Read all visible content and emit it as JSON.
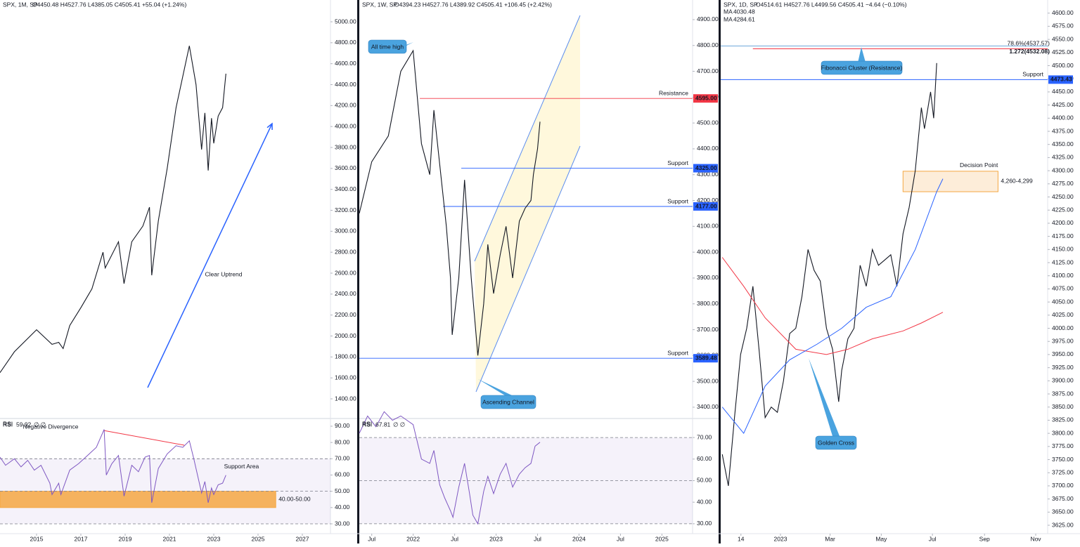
{
  "chart_data": [
    {
      "type": "line",
      "header": "SPX, 1M, SP",
      "info": "O4450.48  H4527.76  L4385.05  C4505.41  +55.04 (+1.24%)",
      "xlim": [
        2013.35,
        2028.27
      ],
      "ylim": [
        1219,
        5208
      ],
      "xticks": [
        2015,
        2017,
        2019,
        2021,
        2023,
        2025,
        2027
      ],
      "yticks": [
        {
          "value": 1400,
          "label": "1400.00"
        },
        {
          "value": 1600,
          "label": "1600.00"
        },
        {
          "value": 1800,
          "label": "1800.00"
        },
        {
          "value": 2000,
          "label": "2000.00"
        },
        {
          "value": 2200,
          "label": "2200.00"
        },
        {
          "value": 2400,
          "label": "2400.00"
        },
        {
          "value": 2600,
          "label": "2600.00"
        },
        {
          "value": 2800,
          "label": "2800.00"
        },
        {
          "value": 3000,
          "label": "3000.00"
        },
        {
          "value": 3200,
          "label": "3200.00"
        },
        {
          "value": 3400,
          "label": "3400.00"
        },
        {
          "value": 3600,
          "label": "3600.00"
        },
        {
          "value": 3800,
          "label": "3800.00"
        },
        {
          "value": 4000,
          "label": "4000.00"
        },
        {
          "value": 4200,
          "label": "4200.00"
        },
        {
          "value": 4400,
          "label": "4400.00"
        },
        {
          "value": 4600,
          "label": "4600.00"
        },
        {
          "value": 4800,
          "label": "4800.00"
        },
        {
          "value": 5000,
          "label": "5000.00"
        }
      ],
      "series": [
        {
          "color": "#131722",
          "x": [
            2013.35,
            2014.0,
            2015.0,
            2015.7,
            2016.0,
            2016.2,
            2016.5,
            2017.0,
            2017.5,
            2018.0,
            2018.1,
            2018.7,
            2018.95,
            2019.3,
            2019.8,
            2020.1,
            2020.2,
            2020.5,
            2020.9,
            2021.3,
            2021.9,
            2022.2,
            2022.45,
            2022.6,
            2022.75,
            2022.9,
            2023.0,
            2023.2,
            2023.4,
            2023.55
          ],
          "values": [
            1650,
            1850,
            2060,
            1920,
            1940,
            1880,
            2100,
            2270,
            2450,
            2800,
            2650,
            2900,
            2500,
            2900,
            3050,
            3230,
            2580,
            3100,
            3600,
            4180,
            4770,
            4400,
            3780,
            4130,
            3580,
            4080,
            3840,
            4100,
            4180,
            4505
          ]
        }
      ],
      "notes": [
        {
          "text": "Clear Uptrend"
        }
      ]
    },
    {
      "type": "line",
      "header": "RSI",
      "info": "∅  ∅",
      "xlim": [
        2013.35,
        2028.27
      ],
      "ylim": [
        23.96,
        94.3
      ],
      "yticks": [
        {
          "value": 30,
          "label": "30.00"
        },
        {
          "value": 40,
          "label": "40.00"
        },
        {
          "value": 50,
          "label": "50.00"
        },
        {
          "value": 60,
          "label": "60.00"
        },
        {
          "value": 70,
          "label": "70.00"
        },
        {
          "value": 80,
          "label": "80.00"
        },
        {
          "value": 90,
          "label": "90.00"
        }
      ],
      "band": [
        30,
        70
      ],
      "dashed": [
        70,
        50,
        30
      ],
      "series": [
        {
          "name": "RSI",
          "color": "#7e57c2",
          "x": [
            2013.35,
            2013.6,
            2014.0,
            2014.3,
            2014.6,
            2014.9,
            2015.2,
            2015.6,
            2015.7,
            2016.0,
            2016.1,
            2016.5,
            2016.9,
            2017.3,
            2017.7,
            2018.05,
            2018.15,
            2018.4,
            2018.7,
            2018.95,
            2019.3,
            2019.6,
            2019.9,
            2020.1,
            2020.2,
            2020.5,
            2020.9,
            2021.3,
            2021.6,
            2021.9,
            2022.1,
            2022.45,
            2022.6,
            2022.75,
            2022.9,
            2023.0,
            2023.2,
            2023.4,
            2023.55
          ],
          "values": [
            71,
            66,
            70,
            65,
            69,
            63,
            66,
            55,
            48,
            55,
            48,
            63,
            67,
            72,
            77,
            88,
            60,
            67,
            72,
            47,
            66,
            62,
            71,
            72,
            43,
            64,
            73,
            78,
            77,
            81,
            70,
            49,
            56,
            43,
            52,
            48,
            54,
            55,
            59.92
          ]
        }
      ],
      "zones": [
        {
          "name": "Support Area",
          "label": "40.00-50.00",
          "range": [
            40,
            50
          ],
          "x": [
            2013.35,
            2025.8
          ],
          "color": "#f5a742"
        }
      ],
      "notes": [
        {
          "text": "Negative Divergence"
        }
      ]
    },
    {
      "type": "line",
      "header": "SPX, 1W, SP",
      "info": "O4394.23  H4527.76  L4389.92  C4505.41  +106.45 (+2.42%)",
      "xlim": [
        2021.35,
        2025.37
      ],
      "ylim": [
        3359,
        4976
      ],
      "xticks": [
        {
          "value": 2021.5,
          "label": "Jul"
        },
        2022,
        {
          "value": 2022.5,
          "label": "Jul"
        },
        2023,
        {
          "value": 2023.5,
          "label": "Jul"
        },
        2024,
        {
          "value": 2024.5,
          "label": "Jul"
        },
        2025
      ],
      "yticks": [
        {
          "value": 3400,
          "label": "3400.00"
        },
        {
          "value": 3500,
          "label": "3500.00"
        },
        {
          "value": 3600,
          "label": "3600.00"
        },
        {
          "value": 3700,
          "label": "3700.00"
        },
        {
          "value": 3800,
          "label": "3800.00"
        },
        {
          "value": 3900,
          "label": "3900.00"
        },
        {
          "value": 4000,
          "label": "4000.00"
        },
        {
          "value": 4100,
          "label": "4100.00"
        },
        {
          "value": 4200,
          "label": "4200.00"
        },
        {
          "value": 4300,
          "label": "4300.00"
        },
        {
          "value": 4400,
          "label": "4400.00"
        },
        {
          "value": 4500,
          "label": "4500.00"
        },
        {
          "value": 4600,
          "label": "4600.00"
        },
        {
          "value": 4700,
          "label": "4700.00"
        },
        {
          "value": 4800,
          "label": "4800.00"
        },
        {
          "value": 4900,
          "label": "4900.00"
        }
      ],
      "series": [
        {
          "color": "#131722",
          "x": [
            2021.35,
            2021.5,
            2021.7,
            2021.85,
            2022.0,
            2022.1,
            2022.2,
            2022.25,
            2022.4,
            2022.45,
            2022.47,
            2022.55,
            2022.62,
            2022.7,
            2022.78,
            2022.85,
            2022.9,
            2022.97,
            2023.05,
            2023.12,
            2023.2,
            2023.28,
            2023.35,
            2023.42,
            2023.45,
            2023.5,
            2023.53
          ],
          "values": [
            4150,
            4350,
            4450,
            4700,
            4780,
            4420,
            4300,
            4550,
            4100,
            3900,
            3680,
            3900,
            4280,
            3900,
            3600,
            3800,
            4030,
            3840,
            3990,
            4100,
            3900,
            4120,
            4170,
            4200,
            4300,
            4400,
            4505
          ]
        }
      ],
      "levels": [
        {
          "name": "Resistance",
          "value": 4595,
          "label": "4595.00",
          "x": 2022.08,
          "color": "#f23645"
        },
        {
          "name": "Support",
          "value": 4325,
          "label": "4325.00",
          "x": 2022.58,
          "color": "#2962ff"
        },
        {
          "name": "Support",
          "value": 4177,
          "label": "4177.00",
          "x": 2022.36,
          "color": "#2962ff"
        },
        {
          "name": "Support",
          "value": 3589.48,
          "label": "3589.48",
          "x": 2021.35,
          "color": "#2962ff"
        }
      ],
      "callouts": [
        {
          "text": "All time high"
        },
        {
          "text": "Ascending Channel"
        }
      ]
    },
    {
      "type": "line",
      "header": "RSI",
      "info": "∅  ∅",
      "xlim": [
        2021.35,
        2025.37
      ],
      "ylim": [
        25.4,
        78.5
      ],
      "yticks": [
        {
          "value": 30,
          "label": "30.00"
        },
        {
          "value": 40,
          "label": "40.00"
        },
        {
          "value": 50,
          "label": "50.00"
        },
        {
          "value": 60,
          "label": "60.00"
        },
        {
          "value": 70,
          "label": "70.00"
        }
      ],
      "band": [
        30,
        70
      ],
      "dashed": [
        70,
        50,
        30
      ],
      "series": [
        {
          "name": "RSI",
          "color": "#7e57c2",
          "x": [
            2021.35,
            2021.45,
            2021.55,
            2021.65,
            2021.75,
            2021.85,
            2022.0,
            2022.1,
            2022.2,
            2022.25,
            2022.32,
            2022.38,
            2022.45,
            2022.48,
            2022.55,
            2022.62,
            2022.68,
            2022.72,
            2022.78,
            2022.85,
            2022.9,
            2022.97,
            2023.05,
            2023.12,
            2023.2,
            2023.28,
            2023.35,
            2023.42,
            2023.47,
            2023.53
          ],
          "values": [
            72,
            80,
            75,
            82,
            78,
            80,
            76,
            60,
            58,
            64,
            48,
            42,
            36,
            33,
            47,
            58,
            44,
            34,
            30,
            45,
            52,
            44,
            53,
            58,
            47,
            53,
            56,
            58,
            66,
            67.81
          ]
        }
      ]
    },
    {
      "type": "line",
      "header": "SPX, 1D, SP",
      "info": "O4514.61  H4527.76  L4499.56  C4505.41  −4.64 (−0.10%)",
      "xlim": [
        2022.805,
        2023.872
      ],
      "ylim": [
        3609,
        4625
      ],
      "xticks": [
        {
          "value": 2022.871,
          "label": "14"
        },
        2023,
        {
          "value": 2023.162,
          "label": "Mar"
        },
        {
          "value": 2023.329,
          "label": "May"
        },
        {
          "value": 2023.496,
          "label": "Jul"
        },
        {
          "value": 2023.666,
          "label": "Sep"
        },
        {
          "value": 2023.833,
          "label": "Nov"
        }
      ],
      "yticks": [
        {
          "value": 3625,
          "label": "3625.00"
        },
        {
          "value": 3650,
          "label": "3650.00"
        },
        {
          "value": 3675,
          "label": "3675.00"
        },
        {
          "value": 3700,
          "label": "3700.00"
        },
        {
          "value": 3725,
          "label": "3725.00"
        },
        {
          "value": 3750,
          "label": "3750.00"
        },
        {
          "value": 3775,
          "label": "3775.00"
        },
        {
          "value": 3800,
          "label": "3800.00"
        },
        {
          "value": 3825,
          "label": "3825.00"
        },
        {
          "value": 3850,
          "label": "3850.00"
        },
        {
          "value": 3875,
          "label": "3875.00"
        },
        {
          "value": 3900,
          "label": "3900.00"
        },
        {
          "value": 3925,
          "label": "3925.00"
        },
        {
          "value": 3950,
          "label": "3950.00"
        },
        {
          "value": 3975,
          "label": "3975.00"
        },
        {
          "value": 4000,
          "label": "4000.00"
        },
        {
          "value": 4025,
          "label": "4025.00"
        },
        {
          "value": 4050,
          "label": "4050.00"
        },
        {
          "value": 4075,
          "label": "4075.00"
        },
        {
          "value": 4100,
          "label": "4100.00"
        },
        {
          "value": 4125,
          "label": "4125.00"
        },
        {
          "value": 4150,
          "label": "4150.00"
        },
        {
          "value": 4175,
          "label": "4175.00"
        },
        {
          "value": 4200,
          "label": "4200.00"
        },
        {
          "value": 4225,
          "label": "4225.00"
        },
        {
          "value": 4250,
          "label": "4250.00"
        },
        {
          "value": 4275,
          "label": "4275.00"
        },
        {
          "value": 4300,
          "label": "4300.00"
        },
        {
          "value": 4325,
          "label": "4325.00"
        },
        {
          "value": 4350,
          "label": "4350.00"
        },
        {
          "value": 4375,
          "label": "4375.00"
        },
        {
          "value": 4400,
          "label": "4400.00"
        },
        {
          "value": 4425,
          "label": "4425.00"
        },
        {
          "value": 4450,
          "label": "4450.00"
        },
        {
          "value": 4475,
          "label": "4475.00"
        },
        {
          "value": 4500,
          "label": "4500.00"
        },
        {
          "value": 4525,
          "label": "4525.00"
        },
        {
          "value": 4550,
          "label": "4550.00"
        },
        {
          "value": 4575,
          "label": "4575.00"
        },
        {
          "value": 4600,
          "label": "4600.00"
        }
      ],
      "series": [
        {
          "color": "#131722",
          "x": [
            2022.81,
            2022.83,
            2022.85,
            2022.87,
            2022.89,
            2022.91,
            2022.93,
            2022.95,
            2022.97,
            2022.99,
            2023.01,
            2023.03,
            2023.05,
            2023.07,
            2023.09,
            2023.11,
            2023.13,
            2023.15,
            2023.17,
            2023.19,
            2023.2,
            2023.22,
            2023.24,
            2023.26,
            2023.28,
            2023.3,
            2023.32,
            2023.34,
            2023.36,
            2023.38,
            2023.4,
            2023.42,
            2023.44,
            2023.46,
            2023.47,
            2023.49,
            2023.5,
            2023.51
          ],
          "values": [
            3760,
            3700,
            3830,
            3950,
            4000,
            4080,
            3960,
            3830,
            3850,
            3840,
            3900,
            3990,
            4000,
            4060,
            4150,
            4110,
            4090,
            4000,
            3960,
            3860,
            3920,
            3980,
            4000,
            4120,
            4080,
            4150,
            4120,
            4130,
            4140,
            4080,
            4180,
            4230,
            4300,
            4420,
            4380,
            4450,
            4400,
            4505
          ]
        },
        {
          "name": "MA",
          "color": "#f23645",
          "x": [
            2022.81,
            2022.88,
            2022.95,
            2023.05,
            2023.15,
            2023.22,
            2023.3,
            2023.4,
            2023.46,
            2023.53
          ],
          "values": [
            4135,
            4080,
            4020,
            3960,
            3950,
            3960,
            3980,
            3995,
            4010,
            4030.48
          ]
        },
        {
          "name": "MA",
          "color": "#2962ff",
          "x": [
            2022.81,
            2022.88,
            2022.95,
            2023.03,
            2023.12,
            2023.2,
            2023.28,
            2023.36,
            2023.44,
            2023.51,
            2023.53
          ],
          "values": [
            3850,
            3800,
            3890,
            3940,
            3970,
            4000,
            4040,
            4060,
            4150,
            4260,
            4284.61
          ]
        }
      ],
      "levels": [
        {
          "value": 4537.57,
          "label": "78.6%(4537.57)",
          "x": 2022.805,
          "color": "#5b9bd5"
        },
        {
          "value": 4532.08,
          "label": "1.272(4532.08)",
          "x": 2022.91,
          "color": "#f23645"
        },
        {
          "name": "Support",
          "value": 4473.43,
          "label": "4473.43",
          "x": 2022.805,
          "color": "#2962ff"
        }
      ],
      "zones": [
        {
          "name": "Decision Point",
          "label": "4,260-4,299",
          "range": [
            4260,
            4299
          ],
          "x": [
            2023.4,
            2023.71
          ],
          "color": "#f5a742"
        }
      ],
      "callouts": [
        {
          "text": "Fibonacci Cluster (Resistance)"
        },
        {
          "text": "Golden Cross"
        }
      ]
    }
  ]
}
